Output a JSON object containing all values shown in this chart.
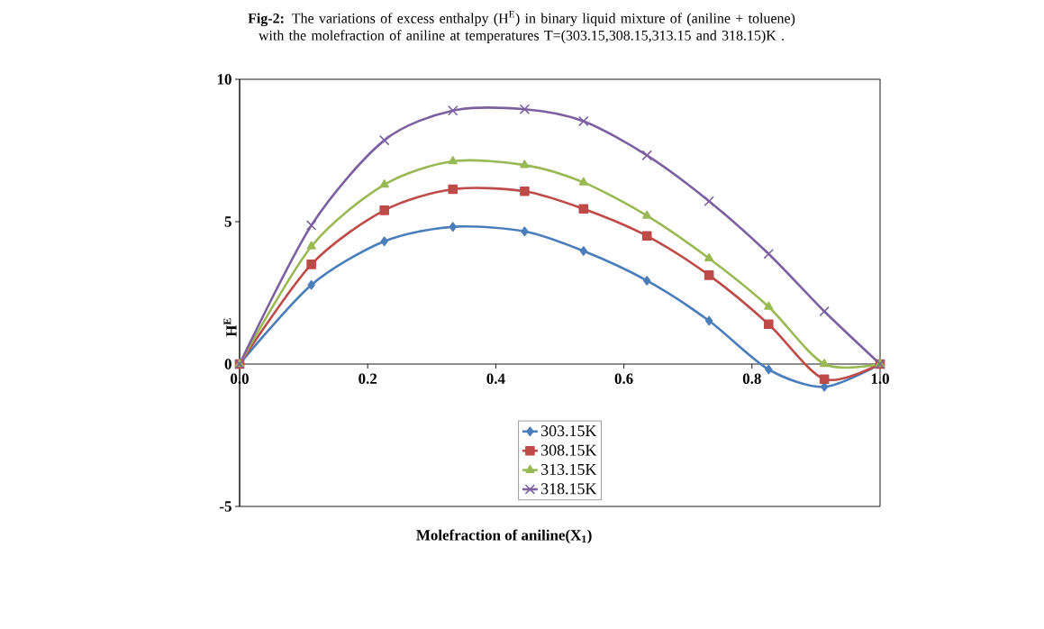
{
  "chart_data": {
    "type": "line",
    "title": "**Fig-2:** The variations of excess enthalpy (H$^{E}$) in binary liquid mixture of (aniline + toluene) with the molefraction of aniline at temperatures T=(303.15,308.15,313.15 and 318.15)K .",
    "xlabel": "Molefraction of aniline(X$_{1}$)",
    "ylabel": "H$^{E}$",
    "x": [
      0,
      0.112,
      0.226,
      0.333,
      0.445,
      0.537,
      0.636,
      0.733,
      0.826,
      0.913,
      1.0
    ],
    "xlim": [
      0,
      1
    ],
    "ylim": [
      -5,
      10
    ],
    "xticks": [
      {
        "value": 0,
        "label": "0.0"
      },
      0.2,
      0.4,
      0.6,
      0.8,
      {
        "value": 1,
        "label": "1.0"
      }
    ],
    "yticks": [
      -5,
      0,
      5,
      10
    ],
    "legend": "bottom",
    "line_style": "solid",
    "series": [
      {
        "name": "303.15K",
        "color": "#4a7ebb",
        "marker": "diamond",
        "values": [
          0,
          2.78,
          4.31,
          4.82,
          4.66,
          3.97,
          2.93,
          1.52,
          -0.19,
          -0.8,
          0
        ]
      },
      {
        "name": "308.15K",
        "color": "#be4b48",
        "marker": "square",
        "values": [
          0,
          3.5,
          5.4,
          6.14,
          6.07,
          5.45,
          4.5,
          3.12,
          1.4,
          -0.53,
          0
        ]
      },
      {
        "name": "313.15K",
        "color": "#98b954",
        "marker": "triangle",
        "values": [
          0,
          4.13,
          6.3,
          7.12,
          6.99,
          6.38,
          5.21,
          3.71,
          2.01,
          0,
          0
        ]
      },
      {
        "name": "318.15K",
        "color": "#7d60a0",
        "marker": "cross",
        "values": [
          0,
          4.87,
          7.86,
          8.9,
          8.95,
          8.53,
          7.33,
          5.72,
          3.87,
          1.85,
          0
        ]
      }
    ]
  }
}
